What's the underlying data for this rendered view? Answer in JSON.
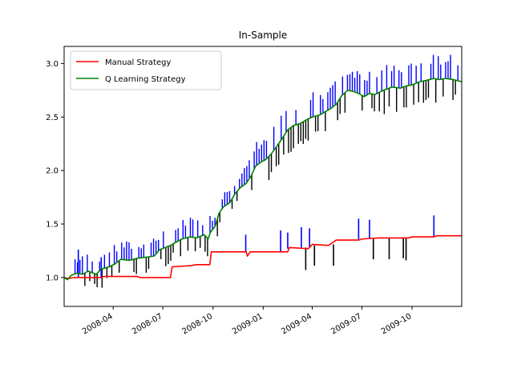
{
  "chart_data": {
    "type": "line",
    "title": "In-Sample",
    "xlabel": "",
    "ylabel": "",
    "x_range": [
      "2008-01-02",
      "2009-12-31"
    ],
    "ylim": [
      0.73,
      3.16
    ],
    "y_ticks": [
      1.0,
      1.5,
      2.0,
      2.5,
      3.0
    ],
    "y_tick_labels": [
      "1.0",
      "1.5",
      "2.0",
      "2.5",
      "3.0"
    ],
    "x_ticks": [
      "2008-04-01",
      "2008-07-01",
      "2008-10-01",
      "2009-01-01",
      "2009-04-01",
      "2009-07-01",
      "2009-10-01"
    ],
    "x_tick_labels": [
      "2008-04",
      "2008-07",
      "2008-10",
      "2009-01",
      "2009-04",
      "2009-07",
      "2009-10"
    ],
    "grid": false,
    "legend_position": "upper-left",
    "series": [
      {
        "name": "Manual Strategy",
        "color": "#ff0000",
        "points": [
          [
            "2008-01-02",
            1.0
          ],
          [
            "2008-01-10",
            0.99
          ],
          [
            "2008-01-20",
            1.0
          ],
          [
            "2008-02-01",
            1.0
          ],
          [
            "2008-03-10",
            1.0
          ],
          [
            "2008-03-15",
            1.01
          ],
          [
            "2008-05-15",
            1.01
          ],
          [
            "2008-05-20",
            1.0
          ],
          [
            "2008-07-15",
            1.0
          ],
          [
            "2008-07-18",
            1.1
          ],
          [
            "2008-08-20",
            1.11
          ],
          [
            "2008-09-01",
            1.12
          ],
          [
            "2008-09-25",
            1.12
          ],
          [
            "2008-09-28",
            1.24
          ],
          [
            "2008-12-01",
            1.24
          ],
          [
            "2008-12-03",
            1.2
          ],
          [
            "2008-12-08",
            1.24
          ],
          [
            "2009-02-15",
            1.24
          ],
          [
            "2009-02-18",
            1.28
          ],
          [
            "2009-03-25",
            1.27
          ],
          [
            "2009-04-01",
            1.31
          ],
          [
            "2009-05-01",
            1.3
          ],
          [
            "2009-05-15",
            1.35
          ],
          [
            "2009-06-25",
            1.35
          ],
          [
            "2009-07-01",
            1.36
          ],
          [
            "2009-08-01",
            1.37
          ],
          [
            "2009-09-25",
            1.37
          ],
          [
            "2009-10-01",
            1.38
          ],
          [
            "2009-11-10",
            1.38
          ],
          [
            "2009-11-15",
            1.39
          ],
          [
            "2009-12-31",
            1.39
          ]
        ],
        "buy_markers": [
          [
            "2008-01-28",
            1.0,
            1.26
          ],
          [
            "2008-03-10",
            1.0,
            1.19
          ],
          [
            "2008-11-30",
            1.24,
            1.4
          ],
          [
            "2009-02-02",
            1.24,
            1.44
          ],
          [
            "2009-02-15",
            1.27,
            1.42
          ],
          [
            "2009-03-12",
            1.28,
            1.47
          ],
          [
            "2009-03-27",
            1.28,
            1.46
          ],
          [
            "2009-06-25",
            1.35,
            1.55
          ],
          [
            "2009-07-15",
            1.36,
            1.54
          ],
          [
            "2009-11-10",
            1.38,
            1.58
          ]
        ],
        "sell_markers": [
          [
            "2009-03-20",
            1.28,
            1.07
          ],
          [
            "2009-04-05",
            1.3,
            1.11
          ],
          [
            "2009-05-10",
            1.31,
            1.11
          ],
          [
            "2009-07-22",
            1.36,
            1.17
          ],
          [
            "2009-08-20",
            1.37,
            1.17
          ],
          [
            "2009-09-15",
            1.37,
            1.18
          ],
          [
            "2009-09-20",
            1.37,
            1.16
          ]
        ]
      },
      {
        "name": "Q Learning Strategy",
        "color": "#008000",
        "points": [
          [
            "2008-01-02",
            1.0
          ],
          [
            "2008-01-08",
            0.98
          ],
          [
            "2008-01-15",
            1.02
          ],
          [
            "2008-01-25",
            1.04
          ],
          [
            "2008-02-05",
            1.03
          ],
          [
            "2008-02-15",
            1.06
          ],
          [
            "2008-03-01",
            1.03
          ],
          [
            "2008-03-10",
            1.08
          ],
          [
            "2008-03-25",
            1.1
          ],
          [
            "2008-04-05",
            1.13
          ],
          [
            "2008-04-15",
            1.17
          ],
          [
            "2008-05-01",
            1.16
          ],
          [
            "2008-05-15",
            1.18
          ],
          [
            "2008-06-01",
            1.19
          ],
          [
            "2008-06-15",
            1.2
          ],
          [
            "2008-06-25",
            1.26
          ],
          [
            "2008-07-05",
            1.28
          ],
          [
            "2008-07-15",
            1.3
          ],
          [
            "2008-07-25",
            1.33
          ],
          [
            "2008-08-05",
            1.36
          ],
          [
            "2008-08-20",
            1.38
          ],
          [
            "2008-09-01",
            1.37
          ],
          [
            "2008-09-15",
            1.4
          ],
          [
            "2008-09-22",
            1.36
          ],
          [
            "2008-09-26",
            1.42
          ],
          [
            "2008-10-05",
            1.48
          ],
          [
            "2008-10-12",
            1.6
          ],
          [
            "2008-10-20",
            1.66
          ],
          [
            "2008-11-01",
            1.7
          ],
          [
            "2008-11-10",
            1.78
          ],
          [
            "2008-11-20",
            1.84
          ],
          [
            "2008-12-01",
            1.88
          ],
          [
            "2008-12-10",
            1.95
          ],
          [
            "2008-12-18",
            2.04
          ],
          [
            "2008-12-28",
            2.08
          ],
          [
            "2009-01-05",
            2.1
          ],
          [
            "2009-01-15",
            2.15
          ],
          [
            "2009-01-25",
            2.22
          ],
          [
            "2009-02-05",
            2.3
          ],
          [
            "2009-02-15",
            2.38
          ],
          [
            "2009-02-25",
            2.42
          ],
          [
            "2009-03-10",
            2.44
          ],
          [
            "2009-03-20",
            2.47
          ],
          [
            "2009-04-01",
            2.5
          ],
          [
            "2009-04-15",
            2.52
          ],
          [
            "2009-04-25",
            2.55
          ],
          [
            "2009-05-05",
            2.58
          ],
          [
            "2009-05-15",
            2.62
          ],
          [
            "2009-05-25",
            2.7
          ],
          [
            "2009-06-05",
            2.75
          ],
          [
            "2009-06-15",
            2.74
          ],
          [
            "2009-06-25",
            2.72
          ],
          [
            "2009-07-05",
            2.69
          ],
          [
            "2009-07-15",
            2.72
          ],
          [
            "2009-07-25",
            2.71
          ],
          [
            "2009-08-05",
            2.74
          ],
          [
            "2009-08-15",
            2.76
          ],
          [
            "2009-08-25",
            2.78
          ],
          [
            "2009-09-10",
            2.77
          ],
          [
            "2009-09-20",
            2.79
          ],
          [
            "2009-10-01",
            2.8
          ],
          [
            "2009-10-15",
            2.83
          ],
          [
            "2009-10-25",
            2.84
          ],
          [
            "2009-11-10",
            2.86
          ],
          [
            "2009-11-20",
            2.85
          ],
          [
            "2009-12-01",
            2.86
          ],
          [
            "2009-12-15",
            2.85
          ],
          [
            "2009-12-31",
            2.83
          ]
        ]
      }
    ]
  }
}
